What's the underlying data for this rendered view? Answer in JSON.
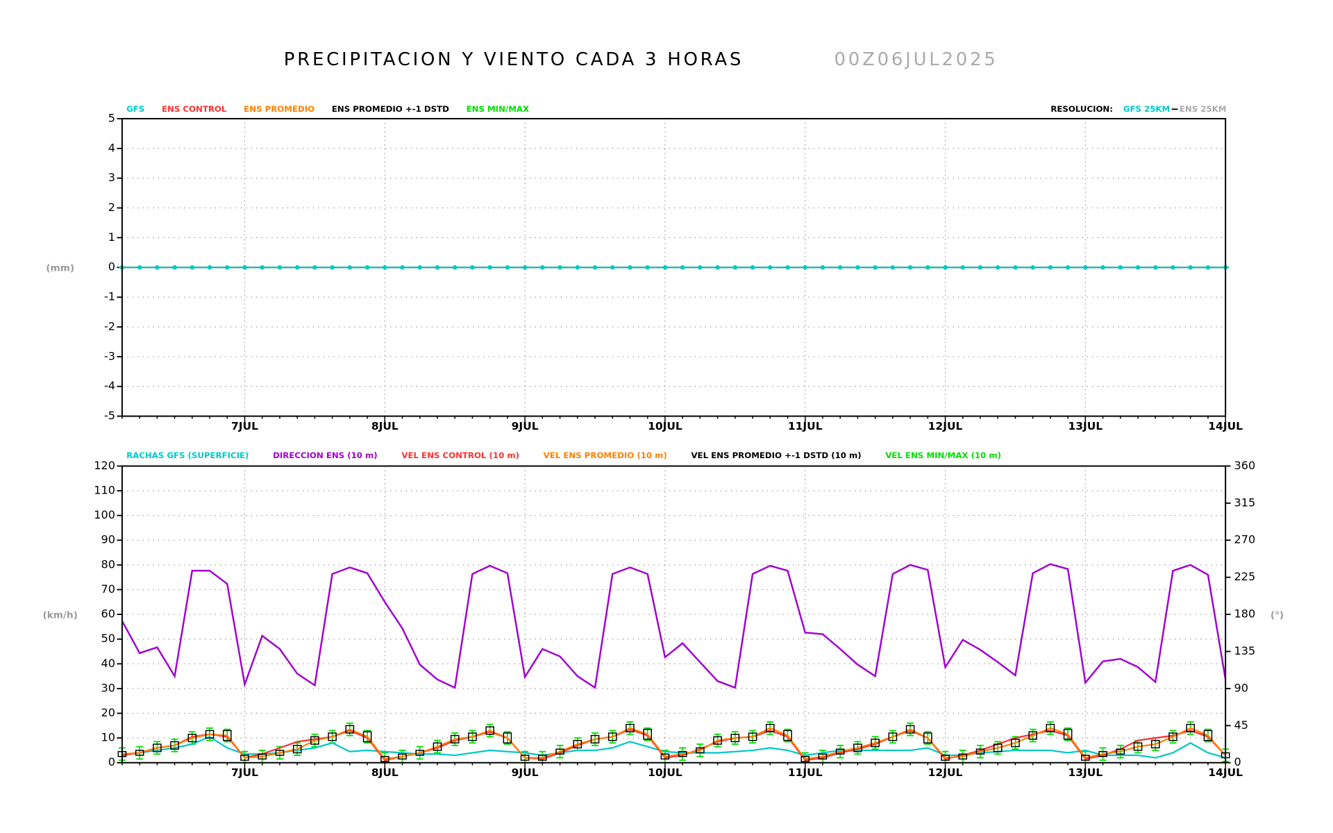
{
  "title": "PRECIPITACION Y VIENTO CADA 3 HORAS",
  "run": "00Z06JUL2025",
  "resolution": {
    "label": "RESOLUCION:",
    "gfs": "GFS 25KM",
    "ens": "ENS 25KM"
  },
  "chart_data": [
    {
      "type": "line",
      "ylabel": "(mm)",
      "ylim": [
        -5,
        5
      ],
      "yticks": [
        -5,
        -4,
        -3,
        -2,
        -1,
        0,
        1,
        2,
        3,
        4,
        5
      ],
      "grid": true,
      "categories": [
        null,
        null,
        null,
        null,
        null,
        null,
        null,
        "7JUL",
        null,
        null,
        null,
        null,
        null,
        null,
        null,
        "8JUL",
        null,
        null,
        null,
        null,
        null,
        null,
        null,
        "9JUL",
        null,
        null,
        null,
        null,
        null,
        null,
        null,
        "10JUL",
        null,
        null,
        null,
        null,
        null,
        null,
        null,
        "11JUL",
        null,
        null,
        null,
        null,
        null,
        null,
        null,
        "12JUL",
        null,
        null,
        null,
        null,
        null,
        null,
        null,
        "13JUL",
        null,
        null,
        null,
        null,
        null,
        null,
        null,
        "14JUL"
      ],
      "series": [
        {
          "name": "GFS",
          "color": "#00c8c8",
          "mark": "dots-line",
          "values": [
            0,
            0,
            0,
            0,
            0,
            0,
            0,
            0,
            0,
            0,
            0,
            0,
            0,
            0,
            0,
            0,
            0,
            0,
            0,
            0,
            0,
            0,
            0,
            0,
            0,
            0,
            0,
            0,
            0,
            0,
            0,
            0,
            0,
            0,
            0,
            0,
            0,
            0,
            0,
            0,
            0,
            0,
            0,
            0,
            0,
            0,
            0,
            0,
            0,
            0,
            0,
            0,
            0,
            0,
            0,
            0,
            0,
            0,
            0,
            0,
            0,
            0,
            0,
            0
          ]
        },
        {
          "name": "ENS CONTROL",
          "color": "#ff3030",
          "mark": "line",
          "values": [
            0,
            0,
            0,
            0,
            0,
            0,
            0,
            0,
            0,
            0,
            0,
            0,
            0,
            0,
            0,
            0,
            0,
            0,
            0,
            0,
            0,
            0,
            0,
            0,
            0,
            0,
            0,
            0,
            0,
            0,
            0,
            0,
            0,
            0,
            0,
            0,
            0,
            0,
            0,
            0,
            0,
            0,
            0,
            0,
            0,
            0,
            0,
            0,
            0,
            0,
            0,
            0,
            0,
            0,
            0,
            0,
            0,
            0,
            0,
            0,
            0,
            0,
            0,
            0
          ]
        },
        {
          "name": "ENS PROMEDIO",
          "color": "#ff8000",
          "mark": "line",
          "values": [
            0,
            0,
            0,
            0,
            0,
            0,
            0,
            0,
            0,
            0,
            0,
            0,
            0,
            0,
            0,
            0,
            0,
            0,
            0,
            0,
            0,
            0,
            0,
            0,
            0,
            0,
            0,
            0,
            0,
            0,
            0,
            0,
            0,
            0,
            0,
            0,
            0,
            0,
            0,
            0,
            0,
            0,
            0,
            0,
            0,
            0,
            0,
            0,
            0,
            0,
            0,
            0,
            0,
            0,
            0,
            0,
            0,
            0,
            0,
            0,
            0,
            0,
            0,
            0
          ]
        },
        {
          "name": "ENS PROMEDIO +-1 DSTD",
          "color": "#000000",
          "mark": "box",
          "values": [
            0,
            0,
            0,
            0,
            0,
            0,
            0,
            0,
            0,
            0,
            0,
            0,
            0,
            0,
            0,
            0,
            0,
            0,
            0,
            0,
            0,
            0,
            0,
            0,
            0,
            0,
            0,
            0,
            0,
            0,
            0,
            0,
            0,
            0,
            0,
            0,
            0,
            0,
            0,
            0,
            0,
            0,
            0,
            0,
            0,
            0,
            0,
            0,
            0,
            0,
            0,
            0,
            0,
            0,
            0,
            0,
            0,
            0,
            0,
            0,
            0,
            0,
            0,
            0
          ]
        },
        {
          "name": "ENS MIN/MAX",
          "color": "#00dd00",
          "mark": "whisker",
          "min": [
            0,
            0,
            0,
            0,
            0,
            0,
            0,
            0,
            0,
            0,
            0,
            0,
            0,
            0,
            0,
            0,
            0,
            0,
            0,
            0,
            0,
            0,
            0,
            0,
            0,
            0,
            0,
            0,
            0,
            0,
            0,
            0,
            0,
            0,
            0,
            0,
            0,
            0,
            0,
            0,
            0,
            0,
            0,
            0,
            0,
            0,
            0,
            0,
            0,
            0,
            0,
            0,
            0,
            0,
            0,
            0,
            0,
            0,
            0,
            0,
            0,
            0,
            0,
            0
          ],
          "max": [
            0,
            0,
            0,
            0,
            0,
            0,
            0,
            0,
            0,
            0,
            0,
            0,
            0,
            0,
            0,
            0,
            0,
            0,
            0,
            0,
            0,
            0,
            0,
            0,
            0,
            0,
            0,
            0,
            0,
            0,
            0,
            0,
            0,
            0,
            0,
            0,
            0,
            0,
            0,
            0,
            0,
            0,
            0,
            0,
            0,
            0,
            0,
            0,
            0,
            0,
            0,
            0,
            0,
            0,
            0,
            0,
            0,
            0,
            0,
            0,
            0,
            0,
            0,
            0
          ]
        }
      ]
    },
    {
      "type": "line",
      "ylabel": "(km/h)",
      "y2label": "(°)",
      "ylim": [
        0,
        120
      ],
      "yticks": [
        0,
        10,
        20,
        30,
        40,
        50,
        60,
        70,
        80,
        90,
        100,
        110,
        120
      ],
      "y2lim": [
        0,
        360
      ],
      "y2ticks": [
        0,
        45,
        90,
        135,
        180,
        225,
        270,
        315,
        360
      ],
      "grid": true,
      "categories": [
        null,
        null,
        null,
        null,
        null,
        null,
        null,
        "7JUL",
        null,
        null,
        null,
        null,
        null,
        null,
        null,
        "8JUL",
        null,
        null,
        null,
        null,
        null,
        null,
        null,
        "9JUL",
        null,
        null,
        null,
        null,
        null,
        null,
        null,
        "10JUL",
        null,
        null,
        null,
        null,
        null,
        null,
        null,
        "11JUL",
        null,
        null,
        null,
        null,
        null,
        null,
        null,
        "12JUL",
        null,
        null,
        null,
        null,
        null,
        null,
        null,
        "13JUL",
        null,
        null,
        null,
        null,
        null,
        null,
        null,
        "14JUL"
      ],
      "series": [
        {
          "name": "RACHAS GFS (SUPERFICIE)",
          "color": "#00c8c8",
          "mark": "line",
          "values": [
            3,
            4,
            5,
            6,
            7.5,
            10.5,
            6,
            3.5,
            3.5,
            4,
            5,
            6,
            8,
            4.5,
            5,
            4.5,
            4,
            3.5,
            3.5,
            3,
            4,
            5,
            4.5,
            4,
            3,
            4,
            5,
            5,
            6,
            8.5,
            6.5,
            4.5,
            4,
            4,
            4,
            4.5,
            5,
            6,
            5,
            3,
            4,
            5,
            5,
            5,
            5,
            5,
            6,
            3,
            3,
            4,
            4.5,
            5,
            5,
            5,
            4,
            5,
            3,
            3,
            3,
            2,
            4,
            8,
            4,
            2
          ]
        },
        {
          "name": "DIRECCION ENS (10 m)",
          "color": "#a000d0",
          "mark": "line",
          "axis": "y2",
          "values": [
            172,
            133,
            140,
            105,
            233,
            233,
            217,
            95,
            154,
            138,
            108,
            94,
            229,
            237,
            230,
            195,
            163,
            119,
            101,
            91,
            229,
            239,
            230,
            104,
            138,
            129,
            105,
            91,
            229,
            237,
            229,
            128,
            145,
            122,
            99,
            91,
            229,
            239,
            233,
            158,
            156,
            138,
            119,
            105,
            229,
            240,
            234,
            116,
            149,
            137,
            122,
            106,
            230,
            241,
            235,
            97,
            123,
            126,
            116,
            98,
            233,
            240,
            228,
            101
          ]
        },
        {
          "name": "VEL ENS CONTROL (10 m)",
          "color": "#ff3030",
          "mark": "line",
          "values": [
            3,
            4,
            6,
            7,
            10.5,
            11.5,
            10.5,
            2,
            3.5,
            6,
            8.5,
            9.5,
            10.5,
            13,
            10,
            1,
            2.5,
            4,
            6,
            9,
            10.5,
            12.5,
            10,
            2,
            1.5,
            4,
            7,
            9.5,
            10.5,
            13.5,
            11,
            2,
            3,
            5.5,
            8.5,
            10,
            10.5,
            13,
            10.5,
            1,
            2,
            4,
            5.5,
            7.5,
            10.5,
            13,
            10,
            1.5,
            3,
            5,
            7.5,
            10,
            11.5,
            13,
            11,
            1.5,
            3,
            5.5,
            9,
            10,
            11,
            13,
            10.5,
            3
          ]
        },
        {
          "name": "VEL ENS PROMEDIO (10 m)",
          "color": "#ff8000",
          "mark": "line",
          "values": [
            3.5,
            4,
            6,
            7,
            10,
            11.5,
            11,
            2,
            2.5,
            4,
            5.5,
            9,
            10.5,
            13.5,
            10.5,
            1.5,
            2.5,
            4,
            6.5,
            9.5,
            10.5,
            13,
            10,
            2,
            2,
            4.5,
            7.5,
            9.5,
            10.5,
            14,
            11.5,
            2.5,
            3.5,
            5,
            9,
            10,
            10.5,
            14,
            11,
            1.5,
            2.5,
            4.5,
            6,
            8,
            10.5,
            13.5,
            10,
            2,
            2.5,
            4.5,
            6,
            8,
            11,
            14,
            11.5,
            2,
            3.5,
            4.5,
            6.5,
            7.5,
            10.5,
            14,
            11,
            3
          ]
        },
        {
          "name": "VEL ENS PROMEDIO +-1 DSTD (10 m)",
          "color": "#000000",
          "mark": "box",
          "values": [
            1,
            1,
            1.5,
            1.5,
            1.5,
            1.5,
            2,
            1,
            1,
            1,
            1.5,
            1.5,
            1.5,
            1.5,
            2,
            1,
            1,
            1,
            1.5,
            1.5,
            1.5,
            1.5,
            2,
            1,
            1,
            1,
            1.5,
            1.5,
            1.5,
            1.5,
            2,
            1,
            1,
            1,
            1.5,
            1.5,
            1.5,
            1.5,
            2,
            1,
            1,
            1,
            1.5,
            1.5,
            1.5,
            1.5,
            2,
            1,
            1,
            1,
            1.5,
            1.5,
            1.5,
            1.5,
            2,
            1,
            1,
            1,
            1.5,
            1.5,
            1.5,
            1.5,
            2,
            1
          ]
        },
        {
          "name": "VEL ENS MIN/MAX (10 m)",
          "color": "#00dd00",
          "mark": "whisker",
          "min": [
            1,
            1.5,
            3.5,
            4.5,
            7.5,
            9,
            8.5,
            0,
            0,
            1.5,
            3,
            6.5,
            8,
            11,
            8,
            0,
            0,
            1.5,
            4,
            7,
            8,
            10.5,
            7.5,
            0,
            0,
            2,
            5,
            7,
            8,
            11.5,
            9,
            0,
            1,
            2.5,
            6.5,
            7.5,
            8,
            11.5,
            8.5,
            0,
            0,
            2,
            3.5,
            5.5,
            8,
            11,
            7.5,
            0,
            0,
            2,
            3.5,
            5.5,
            8.5,
            11.5,
            9,
            0,
            1,
            2,
            4,
            5,
            8,
            11.5,
            8.5,
            0.5
          ],
          "max": [
            6,
            6.5,
            8.5,
            9.5,
            12.5,
            14,
            13.5,
            4.5,
            5,
            6.5,
            8,
            11.5,
            13,
            16,
            13,
            4,
            5,
            6.5,
            9,
            12,
            13,
            15.5,
            12.5,
            4.5,
            4.5,
            7,
            10,
            12,
            13,
            16.5,
            14,
            5,
            6,
            7.5,
            11.5,
            12.5,
            13,
            16.5,
            13.5,
            4,
            5,
            7,
            8.5,
            10.5,
            13,
            16,
            12.5,
            4.5,
            5,
            7,
            8.5,
            10.5,
            13.5,
            16.5,
            14,
            4.5,
            6,
            7,
            9,
            10,
            13,
            16.5,
            13.5,
            5.5
          ]
        }
      ]
    }
  ]
}
